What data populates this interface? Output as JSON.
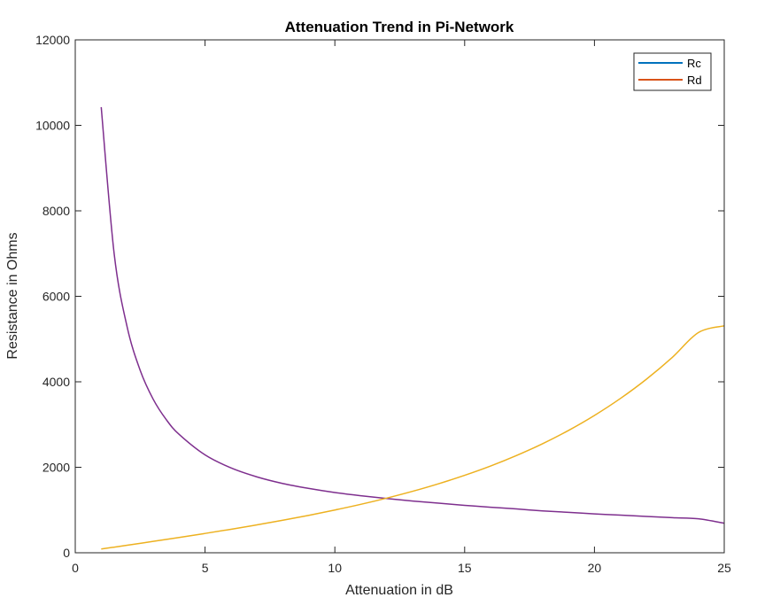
{
  "chart_data": {
    "type": "line",
    "title": "Attenuation Trend in Pi-Network",
    "xlabel": "Attenuation in dB",
    "ylabel": "Resistance in Ohms",
    "xlim": [
      0,
      25
    ],
    "ylim": [
      0,
      12000
    ],
    "xticks": [
      0,
      5,
      10,
      15,
      20,
      25
    ],
    "yticks": [
      0,
      2000,
      4000,
      6000,
      8000,
      10000,
      12000
    ],
    "grid": false,
    "legend_position": "top-right",
    "legend": [
      {
        "name": "Rc",
        "color": "#0072BD"
      },
      {
        "name": "Rd",
        "color": "#D95319"
      }
    ],
    "series": [
      {
        "color": "#7E2F8E",
        "x": [
          1,
          1.5,
          2,
          2.5,
          3,
          3.5,
          4,
          5,
          6,
          7,
          8,
          9,
          10,
          11,
          12,
          13,
          14,
          15,
          16,
          17,
          18,
          19,
          20,
          21,
          22,
          23,
          24,
          25
        ],
        "y": [
          10425,
          6990,
          5280,
          4270,
          3595,
          3120,
          2770,
          2290,
          1985,
          1775,
          1620,
          1505,
          1410,
          1335,
          1270,
          1210,
          1160,
          1110,
          1065,
          1025,
          980,
          945,
          910,
          880,
          850,
          820,
          795,
          690
        ]
      },
      {
        "color": "#EDB120",
        "x": [
          1,
          2,
          3,
          4,
          5,
          6,
          7,
          8,
          9,
          10,
          11,
          12,
          13,
          14,
          15,
          16,
          17,
          18,
          19,
          20,
          21,
          22,
          23,
          24,
          25
        ],
        "y": [
          87,
          176,
          266,
          358,
          452,
          550,
          653,
          761,
          876,
          1000,
          1133,
          1279,
          1439,
          1616,
          1812,
          2030,
          2276,
          2551,
          2862,
          3213,
          3610,
          4060,
          4571,
          5151,
          5310
        ]
      }
    ]
  }
}
